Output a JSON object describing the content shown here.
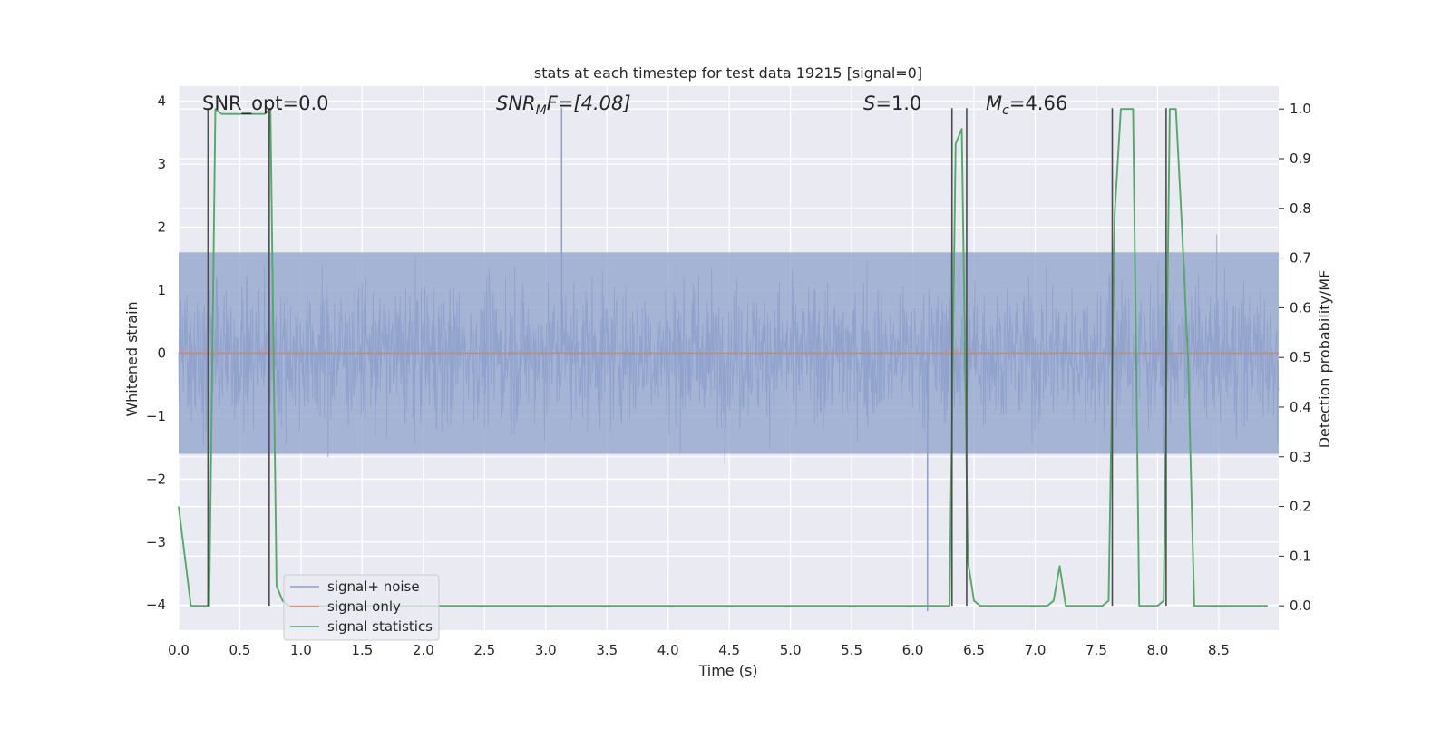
{
  "chart_data": {
    "type": "line",
    "title": "stats at each timestep for test data 19215 [signal=0]",
    "xlabel": "Time (s)",
    "ylabel": "Whitened strain",
    "y2label": "Detection probability/MF",
    "xlim": [
      0,
      8.99
    ],
    "ylim": [
      -4.4,
      4.24
    ],
    "y2lim": [
      -0.049,
      1.046
    ],
    "xticks": [
      0.0,
      0.5,
      1.0,
      1.5,
      2.0,
      2.5,
      3.0,
      3.5,
      4.0,
      4.5,
      5.0,
      5.5,
      6.0,
      6.5,
      7.0,
      7.5,
      8.0,
      8.5
    ],
    "xtick_labels": [
      "0.0",
      "0.5",
      "1.0",
      "1.5",
      "2.0",
      "2.5",
      "3.0",
      "3.5",
      "4.0",
      "4.5",
      "5.0",
      "5.5",
      "6.0",
      "6.5",
      "7.0",
      "7.5",
      "8.0",
      "8.5"
    ],
    "yticks": [
      4,
      3,
      2,
      1,
      0,
      -1,
      -2,
      -3,
      -4
    ],
    "ytick_labels": [
      "4",
      "3",
      "2",
      "1",
      "0",
      "−1",
      "−2",
      "−3",
      "−4"
    ],
    "y2ticks": [
      1.0,
      0.9,
      0.8,
      0.7,
      0.6,
      0.5,
      0.4,
      0.3,
      0.2,
      0.1,
      0.0
    ],
    "y2tick_labels": [
      "1.0",
      "0.9",
      "0.8",
      "0.7",
      "0.6",
      "0.5",
      "0.4",
      "0.3",
      "0.2",
      "0.1",
      "0.0"
    ],
    "grid": true,
    "legend_position": "lower-left",
    "annotations": {
      "snr_opt": "SNR_opt=0.0",
      "snr_mf_main": "SNR",
      "snr_mf_sub": "M",
      "snr_mf_rest": "F=[4.08]",
      "s_main": "S",
      "s_rest": "=1.0",
      "mc_main": "M",
      "mc_sub": "c",
      "mc_rest": "=4.66"
    },
    "series": [
      {
        "name": "signal+ noise",
        "color": "#8da0cb",
        "axis": "left",
        "kind": "noise",
        "approx_envelope": [
          -1.6,
          1.6
        ],
        "peak_extremes": [
          3.9,
          -4.1
        ]
      },
      {
        "name": "signal only",
        "color": "#dd8452",
        "axis": "left",
        "x": [
          0,
          8.99
        ],
        "y": [
          0,
          0
        ]
      },
      {
        "name": "signal statistics",
        "color": "#55a868",
        "axis": "right",
        "x": [
          0.0,
          0.05,
          0.1,
          0.15,
          0.2,
          0.25,
          0.3,
          0.35,
          0.4,
          0.45,
          0.5,
          0.55,
          0.6,
          0.65,
          0.7,
          0.75,
          0.8,
          0.85,
          0.9,
          1.0,
          6.2,
          6.25,
          6.3,
          6.35,
          6.4,
          6.45,
          6.5,
          6.55,
          6.6,
          6.65,
          6.7,
          6.8,
          6.9,
          7.0,
          7.1,
          7.15,
          7.2,
          7.25,
          7.3,
          7.35,
          7.4,
          7.45,
          7.5,
          7.55,
          7.6,
          7.65,
          7.7,
          7.75,
          7.8,
          7.85,
          7.9,
          7.95,
          8.0,
          8.05,
          8.1,
          8.15,
          8.2,
          8.25,
          8.3,
          8.35,
          8.4,
          8.5,
          8.9
        ],
        "y": [
          0.2,
          0.1,
          0.0,
          0.0,
          0.0,
          0.0,
          1.0,
          0.99,
          0.99,
          0.99,
          0.99,
          0.99,
          0.99,
          0.99,
          0.99,
          1.0,
          0.04,
          0.01,
          0.0,
          0.0,
          0.0,
          0.0,
          0.0,
          0.93,
          0.96,
          0.09,
          0.01,
          0.0,
          0.0,
          0.0,
          0.0,
          0.0,
          0.0,
          0.0,
          0.0,
          0.01,
          0.08,
          0.0,
          0.0,
          0.0,
          0.0,
          0.0,
          0.0,
          0.0,
          0.01,
          0.79,
          1.0,
          1.0,
          1.0,
          0.0,
          0.0,
          0.0,
          0.0,
          0.01,
          1.0,
          1.0,
          0.76,
          0.49,
          0.0,
          0.0,
          0.0,
          0.0,
          0.0
        ]
      }
    ],
    "event_markers": [
      0.24,
      0.74,
      6.32,
      6.44,
      7.63,
      8.07
    ]
  }
}
